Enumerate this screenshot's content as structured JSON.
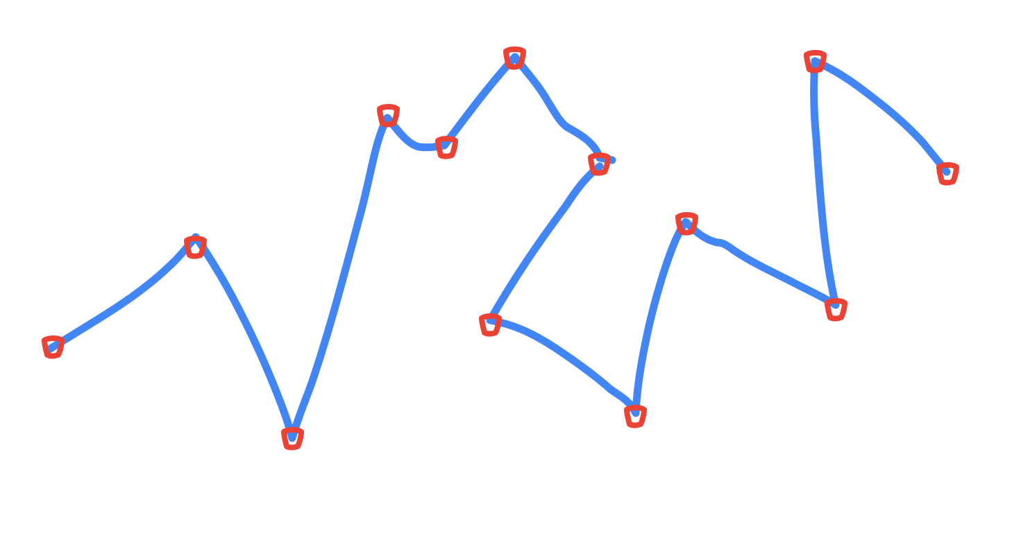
{
  "drawing": {
    "stroke_color": "#4285F4",
    "marker_color": "#EA4335",
    "background_color": "#FFFFFF",
    "stroke_count": 2,
    "vertex_count": 14
  }
}
